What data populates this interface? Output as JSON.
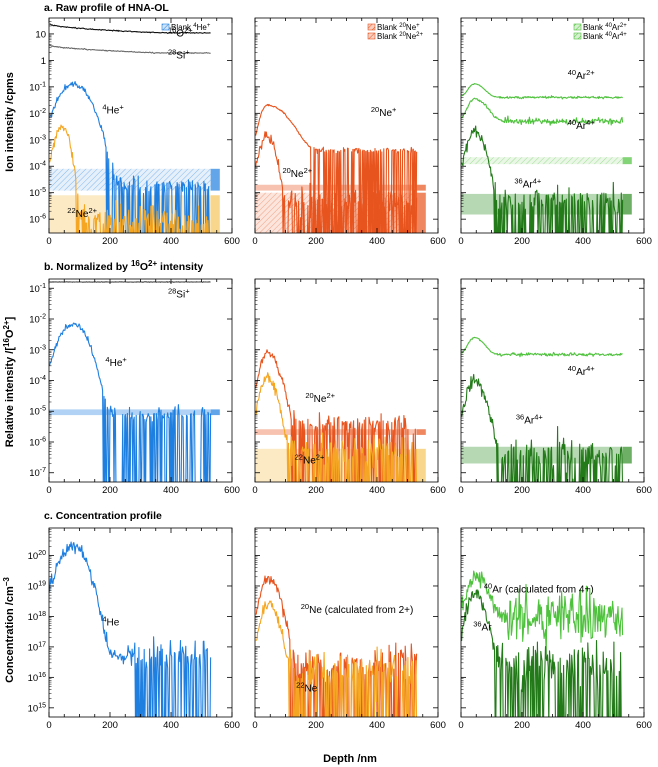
{
  "figure": {
    "xlabel": "Depth /nm",
    "row_titles": [
      {
        "prefix": "a. ",
        "text": "Raw profile of HNA-OL"
      },
      {
        "prefix": "b. ",
        "text": "Normalized by ",
        "sup": "16",
        "text2": "O",
        "sup2": "2+",
        "text3": " intensity"
      },
      {
        "prefix": "c. ",
        "text": "Concentration profile"
      }
    ],
    "ylabels": [
      {
        "text": "Ion intensity /cpms"
      },
      {
        "text": "Relative intensity /[",
        "sup": "16",
        "text2": "O",
        "sup2": "2+",
        "text3": "]"
      },
      {
        "text": "Concentration /cm",
        "sup": "−3"
      }
    ]
  },
  "chart_data": [
    {
      "type": "line",
      "id": "a1",
      "scale": "log",
      "ylim": [
        3e-07,
        40
      ],
      "xlim": [
        0,
        600
      ],
      "yticks": [
        {
          "label": "10",
          "val": 10
        },
        {
          "label": "1",
          "val": 1
        },
        {
          "base": "10",
          "exp": "-1",
          "val": 0.1
        },
        {
          "base": "10",
          "exp": "-2",
          "val": 0.01
        },
        {
          "base": "10",
          "exp": "-3",
          "val": 0.001
        },
        {
          "base": "10",
          "exp": "-4",
          "val": 0.0001
        },
        {
          "base": "10",
          "exp": "-5",
          "val": 1e-05
        },
        {
          "base": "10",
          "exp": "-6",
          "val": 1e-06
        }
      ],
      "xticks": [
        0,
        200,
        400,
        600
      ],
      "series": [
        {
          "name": "16O2+",
          "color": "#111111",
          "profile": "flat",
          "start": 25,
          "end": 11,
          "noise": 0.02,
          "xmax": 530
        },
        {
          "name": "28Si+",
          "color": "#6a6a6a",
          "profile": "flat",
          "start": 4,
          "end": 1.9,
          "noise": 0.02,
          "xmax": 530
        },
        {
          "name": "4He+",
          "color": "#1f7fe0",
          "profile": "peak",
          "peak": 0.13,
          "peak_x": 80,
          "decay": 33,
          "floor": 2e-05,
          "noise": 0.35,
          "xmax": 530
        },
        {
          "name": "22Ne2+",
          "color": "#f5a623",
          "profile": "peak",
          "peak": 0.003,
          "peak_x": 45,
          "decay": 14,
          "floor": 1e-06,
          "noise": 0.55,
          "xmax": 530
        }
      ],
      "blanks": [
        {
          "name": "Blank 4He+",
          "color": "#1f7fe0",
          "lo": 1.2e-05,
          "hi": 8e-05,
          "hatch": true
        },
        {
          "name": "Blank 22Ne2+",
          "color": "#f5c45a",
          "lo": 3e-07,
          "hi": 8e-06,
          "hatch": false
        }
      ],
      "annotations": [
        {
          "sup": "16",
          "base": "O",
          "sup2": "2+",
          "x": 390,
          "y": 8
        },
        {
          "sup": "28",
          "base": "Si",
          "sup2": "+",
          "x": 390,
          "y": 1.2
        },
        {
          "sup": "4",
          "base": "He",
          "sup2": "+",
          "x": 175,
          "y": 0.01
        },
        {
          "sup": "22",
          "base": "Ne",
          "sup2": "2+",
          "x": 60,
          "y": 1.2e-06
        }
      ],
      "legend": [
        {
          "label": "Blank ",
          "sup": "4",
          "base": "He",
          "sup2": "+",
          "color": "#1f7fe0"
        }
      ]
    },
    {
      "type": "line",
      "id": "a2",
      "scale": "log",
      "ylim": [
        3e-07,
        40
      ],
      "xlim": [
        0,
        600
      ],
      "xticks": [
        0,
        200,
        400,
        600
      ],
      "series": [
        {
          "name": "20Ne+",
          "color": "#e8541e",
          "profile": "peak",
          "peak": 0.02,
          "peak_x": 40,
          "decay": 45,
          "floor": 0.0004,
          "noise": 0.12,
          "xmax": 530
        },
        {
          "name": "20Ne2+",
          "color": "#e8541e",
          "profile": "peak",
          "peak": 0.0015,
          "peak_x": 40,
          "decay": 16,
          "floor": 5e-06,
          "noise": 0.6,
          "xmax": 530
        }
      ],
      "blanks": [
        {
          "name": "Blank 20Ne+",
          "color": "#e8541e",
          "lo": 1.2e-05,
          "hi": 2e-05,
          "hatch": false
        },
        {
          "name": "Blank 20Ne2+",
          "color": "#e8541e",
          "lo": 3e-07,
          "hi": 1e-05,
          "hatch": true
        }
      ],
      "annotations": [
        {
          "sup": "20",
          "base": "Ne",
          "sup2": "+",
          "x": 380,
          "y": 0.008
        },
        {
          "sup": "20",
          "base": "Ne",
          "sup2": "2+",
          "x": 90,
          "y": 4e-05
        }
      ],
      "legend": [
        {
          "label": "Blank ",
          "sup": "20",
          "base": "Ne",
          "sup2": "+",
          "color": "#e8541e"
        },
        {
          "label": "Blank ",
          "sup": "20",
          "base": "Ne",
          "sup2": "2+",
          "color": "#e8541e"
        }
      ]
    },
    {
      "type": "line",
      "id": "a3",
      "scale": "log",
      "ylim": [
        3e-07,
        40
      ],
      "xlim": [
        0,
        600
      ],
      "xticks": [
        0,
        200,
        400,
        600
      ],
      "series": [
        {
          "name": "40Ar2+",
          "color": "#4fc23d",
          "profile": "peak",
          "peak": 0.09,
          "peak_x": 45,
          "decay": 25,
          "floor": 0.04,
          "noise": 0.05,
          "xmax": 530
        },
        {
          "name": "40Ar4+",
          "color": "#4fc23d",
          "profile": "peak",
          "peak": 0.03,
          "peak_x": 45,
          "decay": 30,
          "floor": 0.005,
          "noise": 0.15,
          "xmax": 530
        },
        {
          "name": "36Ar4+",
          "color": "#237a19",
          "profile": "peak",
          "peak": 0.002,
          "peak_x": 45,
          "decay": 20,
          "floor": 5e-06,
          "noise": 0.6,
          "xmax": 530
        }
      ],
      "blanks": [
        {
          "name": "Blank 40Ar2+",
          "color": "#4fc23d",
          "lo": 0.00012,
          "hi": 0.00022,
          "hatch": true
        },
        {
          "name": "Blank 40Ar4+",
          "color": "#2f8f24",
          "lo": 1.5e-06,
          "hi": 9e-06,
          "hatch": false
        }
      ],
      "annotations": [
        {
          "sup": "40",
          "base": "Ar",
          "sup2": "2+",
          "x": 350,
          "y": 0.2
        },
        {
          "sup": "40",
          "base": "Ar",
          "sup2": "4+",
          "x": 350,
          "y": 0.0025
        },
        {
          "sup": "36",
          "base": "Ar",
          "sup2": "4+",
          "x": 175,
          "y": 1.6e-05
        }
      ],
      "legend": [
        {
          "label": "Blank ",
          "sup": "40",
          "base": "Ar",
          "sup2": "2+",
          "color": "#4fc23d"
        },
        {
          "label": "Blank ",
          "sup": "40",
          "base": "Ar",
          "sup2": "4+",
          "color": "#4fc23d"
        }
      ]
    },
    {
      "type": "line",
      "id": "b1",
      "scale": "log",
      "ylim": [
        5e-08,
        0.2
      ],
      "xlim": [
        0,
        600
      ],
      "yticks": [
        {
          "base": "10",
          "exp": "-1",
          "val": 0.1
        },
        {
          "base": "10",
          "exp": "-2",
          "val": 0.01
        },
        {
          "base": "10",
          "exp": "-3",
          "val": 0.001
        },
        {
          "base": "10",
          "exp": "-4",
          "val": 0.0001
        },
        {
          "base": "10",
          "exp": "-5",
          "val": 1e-05
        },
        {
          "base": "10",
          "exp": "-6",
          "val": 1e-06
        },
        {
          "base": "10",
          "exp": "-7",
          "val": 1e-07
        }
      ],
      "xticks": [
        0,
        200,
        400,
        600
      ],
      "series": [
        {
          "name": "28Si+",
          "color": "#444444",
          "profile": "flat",
          "start": 0.16,
          "end": 0.16,
          "noise": 0.01,
          "xmax": 530
        },
        {
          "name": "4He+",
          "color": "#1f7fe0",
          "profile": "peak",
          "peak": 0.007,
          "peak_x": 80,
          "decay": 30,
          "floor": 8e-06,
          "noise": 0.3,
          "xmax": 530
        }
      ],
      "blanks": [
        {
          "name": "blank",
          "color": "#1f7fe0",
          "lo": 7.5e-06,
          "hi": 1.15e-05,
          "hatch": false
        }
      ],
      "annotations": [
        {
          "sup": "28",
          "base": "Si",
          "sup2": "+",
          "x": 390,
          "y": 0.05
        },
        {
          "sup": "4",
          "base": "He",
          "sup2": "+",
          "x": 185,
          "y": 0.0003
        }
      ]
    },
    {
      "type": "line",
      "id": "b2",
      "scale": "log",
      "ylim": [
        5e-08,
        0.2
      ],
      "xlim": [
        0,
        600
      ],
      "xticks": [
        0,
        200,
        400,
        600
      ],
      "series": [
        {
          "name": "20Ne2+",
          "color": "#e8541e",
          "profile": "peak",
          "peak": 0.0008,
          "peak_x": 40,
          "decay": 24,
          "floor": 4e-06,
          "noise": 0.4,
          "xmax": 530
        },
        {
          "name": "22Ne2+",
          "color": "#f5a623",
          "profile": "peak",
          "peak": 0.00012,
          "peak_x": 40,
          "decay": 20,
          "floor": 5e-07,
          "noise": 0.6,
          "xmax": 530
        }
      ],
      "blanks": [
        {
          "name": "blank20",
          "color": "#e8541e",
          "lo": 1.7e-06,
          "hi": 2.6e-06,
          "hatch": false
        },
        {
          "name": "blank22",
          "color": "#f5c45a",
          "lo": 5e-08,
          "hi": 6e-07,
          "hatch": false
        }
      ],
      "annotations": [
        {
          "sup": "20",
          "base": "Ne",
          "sup2": "2+",
          "x": 165,
          "y": 2e-05
        },
        {
          "sup": "22",
          "base": "Ne",
          "sup2": "2+",
          "x": 130,
          "y": 2e-07
        }
      ]
    },
    {
      "type": "line",
      "id": "b3",
      "scale": "log",
      "ylim": [
        5e-08,
        0.2
      ],
      "xlim": [
        0,
        600
      ],
      "xticks": [
        0,
        200,
        400,
        600
      ],
      "series": [
        {
          "name": "40Ar4+",
          "color": "#4fc23d",
          "profile": "peak",
          "peak": 0.0018,
          "peak_x": 45,
          "decay": 25,
          "floor": 0.0007,
          "noise": 0.06,
          "xmax": 530
        },
        {
          "name": "36Ar4+",
          "color": "#237a19",
          "profile": "peak",
          "peak": 0.0001,
          "peak_x": 45,
          "decay": 22,
          "floor": 4e-07,
          "noise": 0.6,
          "xmax": 530
        }
      ],
      "blanks": [
        {
          "name": "blank36",
          "color": "#2f8f24",
          "lo": 2e-07,
          "hi": 7e-07,
          "hatch": false
        }
      ],
      "annotations": [
        {
          "sup": "40",
          "base": "Ar",
          "sup2": "4+",
          "x": 350,
          "y": 0.00015
        },
        {
          "sup": "36",
          "base": "Ar",
          "sup2": "4+",
          "x": 180,
          "y": 4e-06
        }
      ]
    },
    {
      "type": "line",
      "id": "c1",
      "scale": "log",
      "ylim": [
        500000000000000.0,
        8e+20
      ],
      "xlim": [
        0,
        600
      ],
      "yticks": [
        {
          "base": "10",
          "exp": "20",
          "val": 1e+20
        },
        {
          "base": "10",
          "exp": "19",
          "val": 1e+19
        },
        {
          "base": "10",
          "exp": "18",
          "val": 1e+18
        },
        {
          "base": "10",
          "exp": "17",
          "val": 1e+17
        },
        {
          "base": "10",
          "exp": "16",
          "val": 1e+16
        },
        {
          "base": "10",
          "exp": "15",
          "val": 1000000000000000.0
        }
      ],
      "xticks": [
        0,
        200,
        400,
        600
      ],
      "series": [
        {
          "name": "4He",
          "color": "#1f7fe0",
          "profile": "peak",
          "peak": 2e+20,
          "peak_x": 80,
          "decay": 28,
          "floor": 5e+16,
          "noise": 0.7,
          "xmax": 530,
          "cut": 280
        }
      ],
      "annotations": [
        {
          "sup": "4",
          "base": "He",
          "sup2": "",
          "x": 175,
          "y": 5e+17
        }
      ]
    },
    {
      "type": "line",
      "id": "c2",
      "scale": "log",
      "ylim": [
        500000000000000.0,
        8e+20
      ],
      "xlim": [
        0,
        600
      ],
      "xticks": [
        0,
        200,
        400,
        600
      ],
      "series": [
        {
          "name": "20Ne",
          "color": "#e8541e",
          "profile": "peak",
          "peak": 1.8e+19,
          "peak_x": 45,
          "decay": 22,
          "floor": 3e+16,
          "noise": 0.6,
          "xmax": 530
        },
        {
          "name": "22Ne",
          "color": "#f5a623",
          "profile": "peak",
          "peak": 2.5e+18,
          "peak_x": 45,
          "decay": 20,
          "floor": 2e+16,
          "noise": 0.7,
          "xmax": 530,
          "cut": 110
        }
      ],
      "annotations": [
        {
          "sup": "20",
          "base": "Ne",
          "sup2": "",
          "tail": " (calculated from 2+)",
          "x": 150,
          "y": 1.3e+18
        },
        {
          "sup": "22",
          "base": "Ne",
          "sup2": "",
          "x": 135,
          "y": 3500000000000000.0
        }
      ]
    },
    {
      "type": "line",
      "id": "c3",
      "scale": "log",
      "ylim": [
        500000000000000.0,
        8e+20
      ],
      "xlim": [
        0,
        600
      ],
      "xticks": [
        0,
        200,
        400,
        600
      ],
      "series": [
        {
          "name": "40Ar",
          "color": "#4fc23d",
          "profile": "peak",
          "peak": 1.7e+19,
          "peak_x": 50,
          "decay": 26,
          "floor": 1e+18,
          "noise": 0.9,
          "xmax": 530,
          "cut": 150
        },
        {
          "name": "36Ar",
          "color": "#237a19",
          "profile": "peak",
          "peak": 5e+18,
          "peak_x": 45,
          "decay": 22,
          "floor": 3e+16,
          "noise": 0.9,
          "xmax": 530,
          "cut": 110
        }
      ],
      "annotations": [
        {
          "sup": "40",
          "base": "Ar",
          "sup2": "",
          "tail": " (calculated from 4+)",
          "x": 75,
          "y": 6e+18
        },
        {
          "sup": "36",
          "base": "Ar",
          "sup2": "",
          "x": 40,
          "y": 3.5e+17
        }
      ]
    }
  ]
}
